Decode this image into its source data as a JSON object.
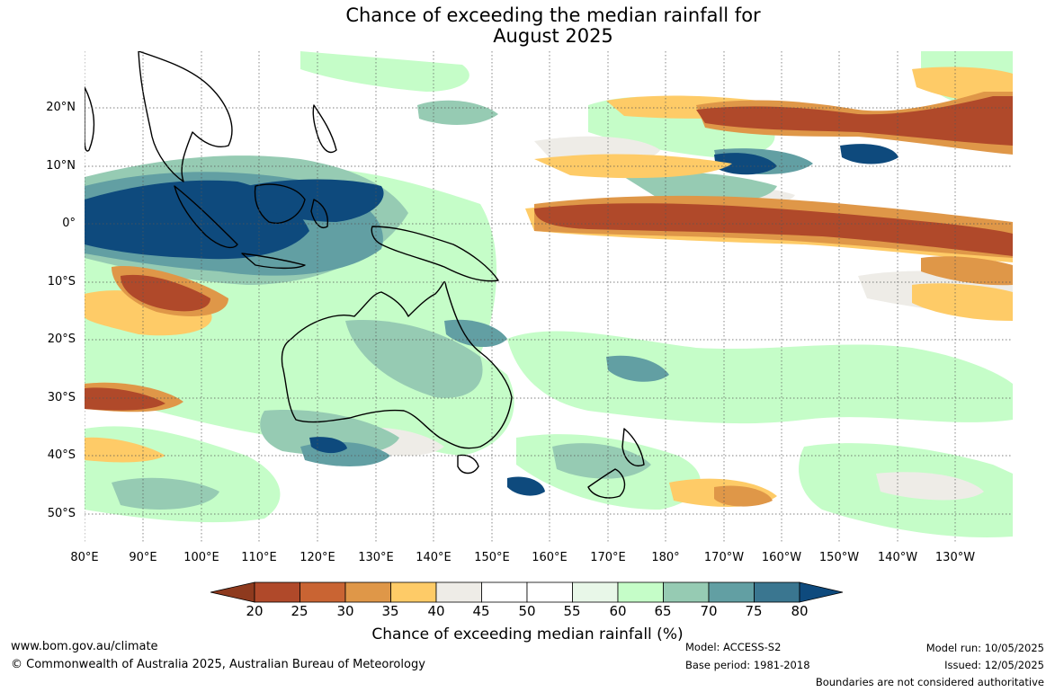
{
  "title": {
    "line1": "Chance of exceeding the median rainfall for",
    "line2": "August 2025"
  },
  "map": {
    "lat_labels": [
      "20°N",
      "10°N",
      "0°",
      "10°S",
      "20°S",
      "30°S",
      "40°S",
      "50°S"
    ],
    "lon_labels": [
      "80°E",
      "90°E",
      "100°E",
      "110°E",
      "120°E",
      "130°E",
      "140°E",
      "150°E",
      "160°E",
      "170°E",
      "180°",
      "170°W",
      "160°W",
      "150°W",
      "140°W",
      "130°W"
    ],
    "colors": {
      "land_outline": "#000000",
      "grid": "#555555",
      "contour": "#999999"
    }
  },
  "colorbar": {
    "ticks": [
      "20",
      "25",
      "30",
      "35",
      "40",
      "45",
      "50",
      "55",
      "60",
      "65",
      "70",
      "75",
      "80"
    ],
    "colors": [
      "#8e3a1e",
      "#b0492a",
      "#c96433",
      "#df9748",
      "#fecb67",
      "#eeece7",
      "#ffffff",
      "#ffffff",
      "#e8f7e8",
      "#c5fdc8",
      "#96cbb3",
      "#629fa3",
      "#3a7690",
      "#0e4a7d"
    ],
    "label": "Chance of exceeding median rainfall (%)"
  },
  "footer": {
    "website": "www.bom.gov.au/climate",
    "copyright": "© Commonwealth of Australia 2025, Australian Bureau of Meteorology",
    "model": "Model: ACCESS-S2",
    "base_period": "Base period: 1981-2018",
    "model_run": "Model run: 10/05/2025",
    "issued": "Issued: 12/05/2025",
    "disclaimer": "Boundaries are not considered authoritative"
  }
}
